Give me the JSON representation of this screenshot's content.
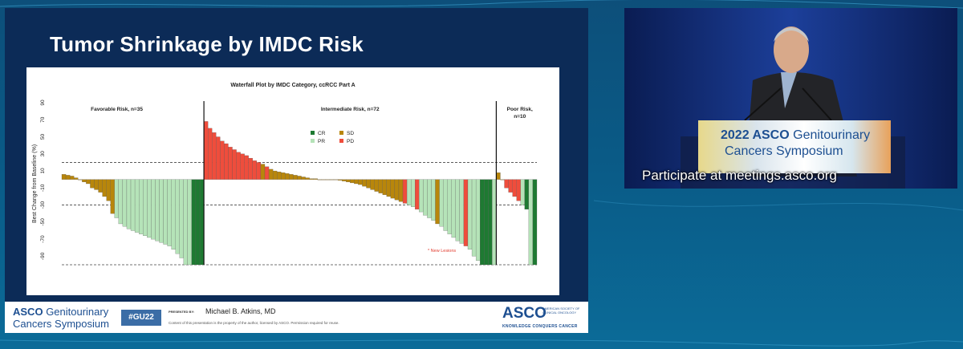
{
  "slide": {
    "title": "Tumor Shrinkage by IMDC Risk",
    "footer": {
      "symposium_logo_line1_bold": "ASCO",
      "symposium_logo_line1_rest": "Genitourinary",
      "symposium_logo_line2": "Cancers Symposium",
      "hashtag": "#GU22",
      "presented_by_label": "PRESENTED BY:",
      "presenter": "Michael B. Atkins, MD",
      "disclaimer": "Content of this presentation is the property of the author, licensed by ASCO. Permission required for reuse.",
      "asco_brand": "ASCO",
      "asco_brand_sub": "AMERICAN SOCIETY OF CLINICAL ONCOLOGY",
      "asco_tagline": "KNOWLEDGE CONQUERS CANCER"
    }
  },
  "video": {
    "podium_line1_bold": "2022 ASCO",
    "podium_line1_rest": "Genitourinary",
    "podium_line2": "Cancers Symposium",
    "caption": "Participate at meetings.asco.org"
  },
  "colors": {
    "CR": "#1e7a32",
    "PR": "#b5e3b8",
    "SD": "#b8860b",
    "PD": "#ef4d3c",
    "slide_bg": "#0c2b57",
    "brand_blue": "#1d4f91"
  },
  "chart_data": {
    "type": "bar",
    "title": "Waterfall Plot by IMDC Category, ccRCC Part A",
    "ylabel": "Best Change from Baseline (%)",
    "xlabel": "",
    "ylim": [
      -100,
      90
    ],
    "yticks": [
      90,
      70,
      50,
      30,
      10,
      -10,
      -30,
      -50,
      -70,
      -90
    ],
    "reference_lines": [
      20,
      -30,
      -100
    ],
    "legend": {
      "placement": "top-center",
      "entries": [
        {
          "code": "CR",
          "label": "CR"
        },
        {
          "code": "SD",
          "label": "SD"
        },
        {
          "code": "PR",
          "label": "PR"
        },
        {
          "code": "PD",
          "label": "PD"
        }
      ]
    },
    "annotation": "* New Lesions",
    "groups": [
      {
        "label": "Favorable Risk, n=35",
        "bars": [
          {
            "value": 6,
            "response": "SD"
          },
          {
            "value": 5,
            "response": "SD"
          },
          {
            "value": 4,
            "response": "SD"
          },
          {
            "value": 2,
            "response": "SD"
          },
          {
            "value": 0,
            "response": "SD"
          },
          {
            "value": -3,
            "response": "SD"
          },
          {
            "value": -5,
            "response": "SD"
          },
          {
            "value": -10,
            "response": "SD"
          },
          {
            "value": -12,
            "response": "SD"
          },
          {
            "value": -15,
            "response": "SD"
          },
          {
            "value": -20,
            "response": "SD"
          },
          {
            "value": -25,
            "response": "SD"
          },
          {
            "value": -40,
            "response": "SD"
          },
          {
            "value": -45,
            "response": "PR"
          },
          {
            "value": -52,
            "response": "PR"
          },
          {
            "value": -55,
            "response": "PR"
          },
          {
            "value": -58,
            "response": "PR"
          },
          {
            "value": -60,
            "response": "PR"
          },
          {
            "value": -62,
            "response": "PR"
          },
          {
            "value": -64,
            "response": "PR"
          },
          {
            "value": -66,
            "response": "PR"
          },
          {
            "value": -68,
            "response": "PR"
          },
          {
            "value": -70,
            "response": "PR"
          },
          {
            "value": -72,
            "response": "PR"
          },
          {
            "value": -74,
            "response": "PR"
          },
          {
            "value": -76,
            "response": "PR"
          },
          {
            "value": -78,
            "response": "PR"
          },
          {
            "value": -82,
            "response": "PR"
          },
          {
            "value": -87,
            "response": "PR"
          },
          {
            "value": -92,
            "response": "PR"
          },
          {
            "value": -100,
            "response": "PR"
          },
          {
            "value": -100,
            "response": "PR"
          },
          {
            "value": -100,
            "response": "CR"
          },
          {
            "value": -100,
            "response": "CR"
          },
          {
            "value": -100,
            "response": "CR"
          }
        ]
      },
      {
        "label": "Intermediate Risk, n=72",
        "bars": [
          {
            "value": 68,
            "response": "PD"
          },
          {
            "value": 60,
            "response": "PD"
          },
          {
            "value": 55,
            "response": "PD"
          },
          {
            "value": 50,
            "response": "PD"
          },
          {
            "value": 45,
            "response": "PD"
          },
          {
            "value": 42,
            "response": "PD"
          },
          {
            "value": 38,
            "response": "PD"
          },
          {
            "value": 35,
            "response": "PD"
          },
          {
            "value": 32,
            "response": "PD"
          },
          {
            "value": 30,
            "response": "PD"
          },
          {
            "value": 28,
            "response": "PD"
          },
          {
            "value": 25,
            "response": "PD"
          },
          {
            "value": 22,
            "response": "PD"
          },
          {
            "value": 20,
            "response": "PD"
          },
          {
            "value": 18,
            "response": "SD"
          },
          {
            "value": 15,
            "response": "PD"
          },
          {
            "value": 12,
            "response": "SD"
          },
          {
            "value": 10,
            "response": "SD"
          },
          {
            "value": 9,
            "response": "SD"
          },
          {
            "value": 8,
            "response": "SD"
          },
          {
            "value": 7,
            "response": "SD"
          },
          {
            "value": 6,
            "response": "SD"
          },
          {
            "value": 5,
            "response": "SD"
          },
          {
            "value": 4,
            "response": "SD"
          },
          {
            "value": 3,
            "response": "SD"
          },
          {
            "value": 2,
            "response": "SD"
          },
          {
            "value": 1,
            "response": "SD"
          },
          {
            "value": 1,
            "response": "SD"
          },
          {
            "value": 0,
            "response": "SD"
          },
          {
            "value": 0,
            "response": "SD"
          },
          {
            "value": 0,
            "response": "SD"
          },
          {
            "value": 0,
            "response": "SD"
          },
          {
            "value": 0,
            "response": "SD"
          },
          {
            "value": -1,
            "response": "SD"
          },
          {
            "value": -2,
            "response": "SD"
          },
          {
            "value": -3,
            "response": "SD"
          },
          {
            "value": -4,
            "response": "SD"
          },
          {
            "value": -5,
            "response": "SD"
          },
          {
            "value": -6,
            "response": "SD"
          },
          {
            "value": -8,
            "response": "SD"
          },
          {
            "value": -10,
            "response": "SD"
          },
          {
            "value": -12,
            "response": "SD"
          },
          {
            "value": -14,
            "response": "SD"
          },
          {
            "value": -16,
            "response": "SD"
          },
          {
            "value": -18,
            "response": "SD"
          },
          {
            "value": -20,
            "response": "SD"
          },
          {
            "value": -22,
            "response": "SD"
          },
          {
            "value": -24,
            "response": "SD"
          },
          {
            "value": -26,
            "response": "SD"
          },
          {
            "value": -28,
            "response": "PD"
          },
          {
            "value": -30,
            "response": "PR"
          },
          {
            "value": -32,
            "response": "PR"
          },
          {
            "value": -35,
            "response": "PD"
          },
          {
            "value": -38,
            "response": "PR"
          },
          {
            "value": -42,
            "response": "PR"
          },
          {
            "value": -45,
            "response": "PR"
          },
          {
            "value": -48,
            "response": "PR"
          },
          {
            "value": -52,
            "response": "SD"
          },
          {
            "value": -55,
            "response": "PR"
          },
          {
            "value": -60,
            "response": "PR"
          },
          {
            "value": -64,
            "response": "PR"
          },
          {
            "value": -68,
            "response": "PR"
          },
          {
            "value": -72,
            "response": "PR"
          },
          {
            "value": -75,
            "response": "PR"
          },
          {
            "value": -78,
            "response": "PD"
          },
          {
            "value": -82,
            "response": "PR"
          },
          {
            "value": -90,
            "response": "PR"
          },
          {
            "value": -95,
            "response": "PR"
          },
          {
            "value": -100,
            "response": "CR"
          },
          {
            "value": -100,
            "response": "CR"
          },
          {
            "value": -100,
            "response": "CR"
          },
          {
            "value": -100,
            "response": "PR"
          }
        ]
      },
      {
        "label": "Poor Risk,\nn=10",
        "bars": [
          {
            "value": 8,
            "response": "SD"
          },
          {
            "value": 0,
            "response": "SD"
          },
          {
            "value": -10,
            "response": "PD"
          },
          {
            "value": -15,
            "response": "PD"
          },
          {
            "value": -20,
            "response": "PD"
          },
          {
            "value": -25,
            "response": "PD"
          },
          {
            "value": -30,
            "response": "PR"
          },
          {
            "value": -35,
            "response": "CR"
          },
          {
            "value": -100,
            "response": "PR"
          },
          {
            "value": -100,
            "response": "CR"
          }
        ]
      }
    ]
  }
}
